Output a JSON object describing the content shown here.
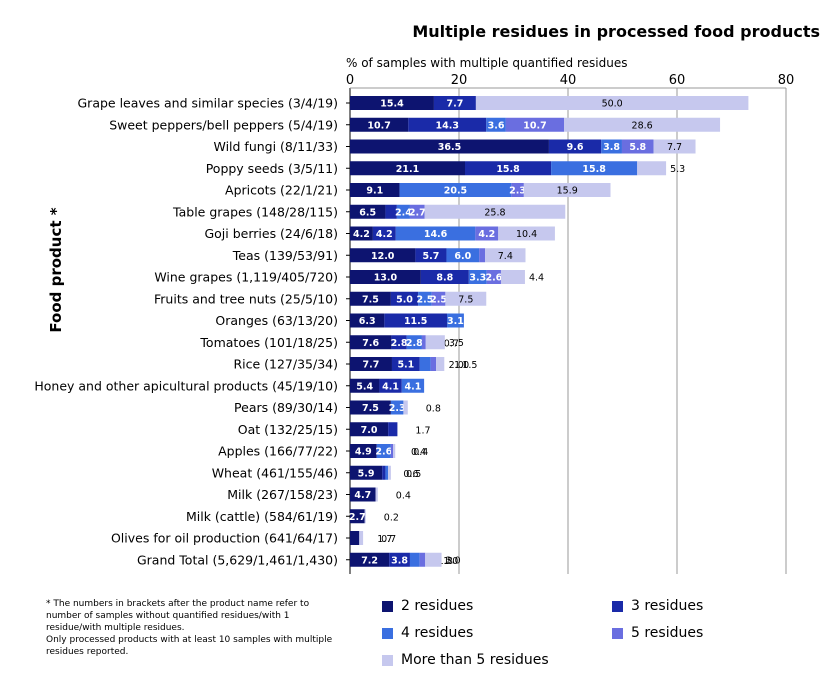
{
  "chart_data": {
    "type": "bar",
    "orientation": "horizontal",
    "stacked": true,
    "title": "Multiple residues in processed food products",
    "xlabel": "% of samples with multiple quantified residues",
    "ylabel": "Food product *",
    "xlim": [
      0,
      80
    ],
    "xticks": [
      0,
      20,
      40,
      60,
      80
    ],
    "grid": true,
    "legend_position": "bottom",
    "categories": [
      "Grape leaves and similar species (3/4/19)",
      "Sweet peppers/bell peppers (5/4/19)",
      "Wild fungi (8/11/33)",
      "Poppy seeds (3/5/11)",
      "Apricots (22/1/21)",
      "Table grapes (148/28/115)",
      "Goji berries (24/6/18)",
      "Teas (139/53/91)",
      "Wine grapes (1,119/405/720)",
      "Fruits and tree nuts (25/5/10)",
      "Oranges (63/13/20)",
      "Tomatoes (101/18/25)",
      "Rice (127/35/34)",
      "Honey and other apicultural products (45/19/10)",
      "Pears (89/30/14)",
      "Oat (132/25/15)",
      "Apples (166/77/22)",
      "Wheat (461/155/46)",
      "Milk (267/158/23)",
      "Milk (cattle) (584/61/19)",
      "Olives for oil production (641/64/17)",
      "Grand Total (5,629/1,461/1,430)"
    ],
    "series": [
      {
        "name": "2 residues",
        "color": "#0d1470",
        "values": [
          15.4,
          10.7,
          36.5,
          21.1,
          9.1,
          6.5,
          4.2,
          12.0,
          13.0,
          7.5,
          6.3,
          7.6,
          7.7,
          5.4,
          7.5,
          7.0,
          4.9,
          5.9,
          4.7,
          2.7,
          1.7,
          7.2
        ]
      },
      {
        "name": "3 residues",
        "color": "#1a2aa8",
        "values": [
          7.7,
          14.3,
          9.6,
          15.8,
          0,
          2.1,
          4.2,
          5.7,
          8.8,
          5.0,
          11.5,
          2.8,
          5.1,
          4.1,
          0,
          1.7,
          0,
          0.6,
          0,
          0,
          0,
          3.8
        ]
      },
      {
        "name": "4 residues",
        "color": "#3a6fe0",
        "values": [
          0,
          3.6,
          3.8,
          15.8,
          20.5,
          2.4,
          14.6,
          6.0,
          3.3,
          2.5,
          3.1,
          2.8,
          2.0,
          4.1,
          2.3,
          0,
          2.6,
          0.5,
          0,
          0,
          0,
          1.8
        ]
      },
      {
        "name": "5 residues",
        "color": "#6a6ee0",
        "values": [
          0,
          10.7,
          5.8,
          0,
          2.3,
          2.7,
          4.2,
          1.1,
          2.6,
          2.5,
          0,
          0.7,
          1.0,
          0,
          0,
          0,
          0.4,
          0,
          0,
          0,
          0,
          1.0
        ]
      },
      {
        "name": "More than 5 residues",
        "color": "#c6c8ee",
        "values": [
          50.0,
          28.6,
          7.7,
          5.3,
          15.9,
          25.8,
          10.4,
          7.4,
          4.4,
          7.5,
          0,
          3.5,
          1.5,
          0,
          0.8,
          0,
          0.4,
          0.5,
          0.4,
          0.2,
          0.7,
          3.0
        ]
      }
    ],
    "data_labels": [
      [
        "15.4",
        "7.7",
        "",
        "",
        "50.0"
      ],
      [
        "10.7",
        "14.3",
        "3.6",
        "10.7",
        "28.6"
      ],
      [
        "36.5",
        "9.6",
        "3.8",
        "5.8",
        "7.7"
      ],
      [
        "21.1",
        "15.8",
        "15.8",
        "",
        "5.3"
      ],
      [
        "9.1",
        "",
        "20.5",
        "2.3",
        "15.9"
      ],
      [
        "6.5",
        "2.1",
        "2.4",
        "2.7",
        "25.8"
      ],
      [
        "4.2",
        "4.2",
        "14.6",
        "4.2",
        "10.4"
      ],
      [
        "12.0",
        "5.7",
        "6.0",
        "1.1",
        "7.4"
      ],
      [
        "13.0",
        "8.8",
        "3.3",
        "2.6",
        "4.4"
      ],
      [
        "7.5",
        "5.0",
        "2.5",
        "2.5",
        "7.5"
      ],
      [
        "6.3",
        "11.5",
        "3.1",
        "",
        ""
      ],
      [
        "7.6",
        "2.8",
        "2.8",
        "0.7",
        "3.5"
      ],
      [
        "7.7",
        "5.1",
        "2.0",
        "1.0",
        "1.5"
      ],
      [
        "5.4",
        "4.1",
        "4.1",
        "",
        ""
      ],
      [
        "7.5",
        "",
        "2.3",
        "",
        "0.8"
      ],
      [
        "7.0",
        "1.7",
        "",
        "",
        ""
      ],
      [
        "4.9",
        "",
        "2.6",
        "0.4",
        "0.4"
      ],
      [
        "5.9",
        "0.6",
        "0.5",
        "",
        ""
      ],
      [
        "4.7",
        "",
        "",
        "",
        "0.4"
      ],
      [
        "2.7",
        "",
        "",
        "",
        "0.2"
      ],
      [
        "1.7",
        "",
        "",
        "",
        "0.7"
      ],
      [
        "7.2",
        "3.8",
        "1.8",
        "1.0",
        "3.0"
      ]
    ]
  },
  "footnote": [
    "* The numbers in brackets after the product name refer to number of samples without quantified residues/with 1 residue/with multiple residues.",
    "Only processed products with at least 10 samples with multiple residues reported."
  ]
}
